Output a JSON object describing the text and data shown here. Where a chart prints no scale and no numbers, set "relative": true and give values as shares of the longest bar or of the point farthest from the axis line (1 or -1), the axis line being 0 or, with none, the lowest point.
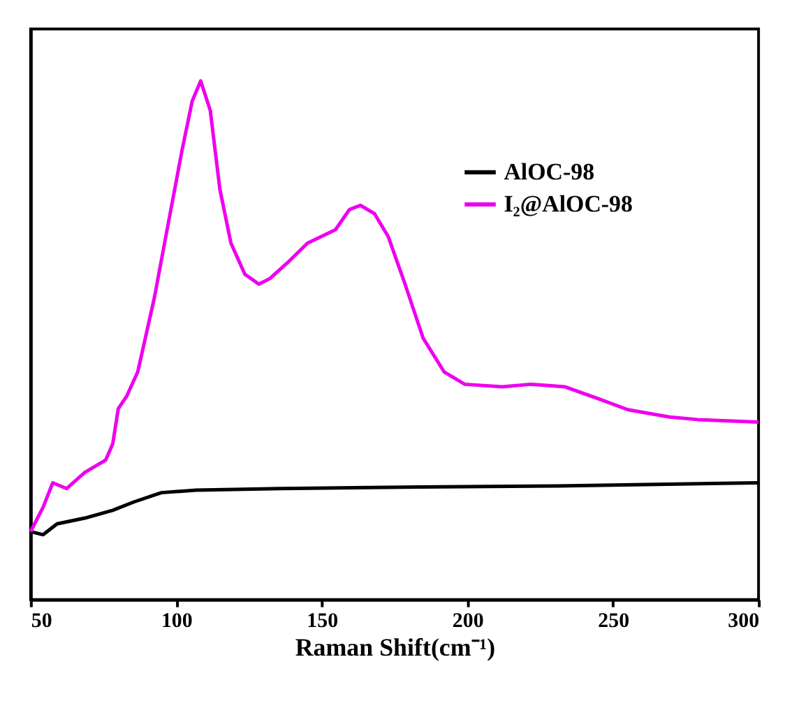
{
  "chart_data": {
    "type": "line",
    "relative": true,
    "xlabel": "Raman Shift(cm⁻¹)",
    "xlim": [
      50,
      300
    ],
    "xticks": [
      50,
      100,
      150,
      200,
      250,
      300
    ],
    "legend": "top right",
    "grid": false,
    "marker": "none",
    "line_style": "solid",
    "series": [
      {
        "name": "AlOC-98",
        "color": "#000000",
        "x": [
          50,
          54.3,
          59.1,
          68.6,
          78.2,
          85.4,
          94.9,
          106.9,
          135.6,
          183.4,
          231.2,
          300
        ],
        "values": [
          0.131,
          0.125,
          0.146,
          0.157,
          0.172,
          0.188,
          0.206,
          0.211,
          0.214,
          0.217,
          0.219,
          0.225
        ]
      },
      {
        "name": "I₂@AlOC-98",
        "color": "#ee00ee",
        "x": [
          50,
          54.3,
          57.6,
          62.4,
          68.6,
          75.8,
          78.2,
          80.1,
          83,
          86.8,
          92.5,
          97.3,
          102.1,
          105.5,
          108.4,
          111.7,
          115,
          118.8,
          123.6,
          128.4,
          132.2,
          138.9,
          145.1,
          154.7,
          159.5,
          163.3,
          168.1,
          172.8,
          178.6,
          184.8,
          192,
          199.1,
          212,
          221.6,
          233.6,
          245.5,
          255.1,
          269.4,
          279,
          300
        ],
        "values": [
          0.131,
          0.178,
          0.225,
          0.214,
          0.245,
          0.269,
          0.3,
          0.368,
          0.392,
          0.439,
          0.582,
          0.726,
          0.869,
          0.961,
          1,
          0.943,
          0.791,
          0.687,
          0.627,
          0.608,
          0.619,
          0.653,
          0.687,
          0.713,
          0.752,
          0.76,
          0.744,
          0.7,
          0.608,
          0.504,
          0.439,
          0.415,
          0.41,
          0.415,
          0.41,
          0.386,
          0.366,
          0.352,
          0.347,
          0.342
        ]
      }
    ]
  }
}
